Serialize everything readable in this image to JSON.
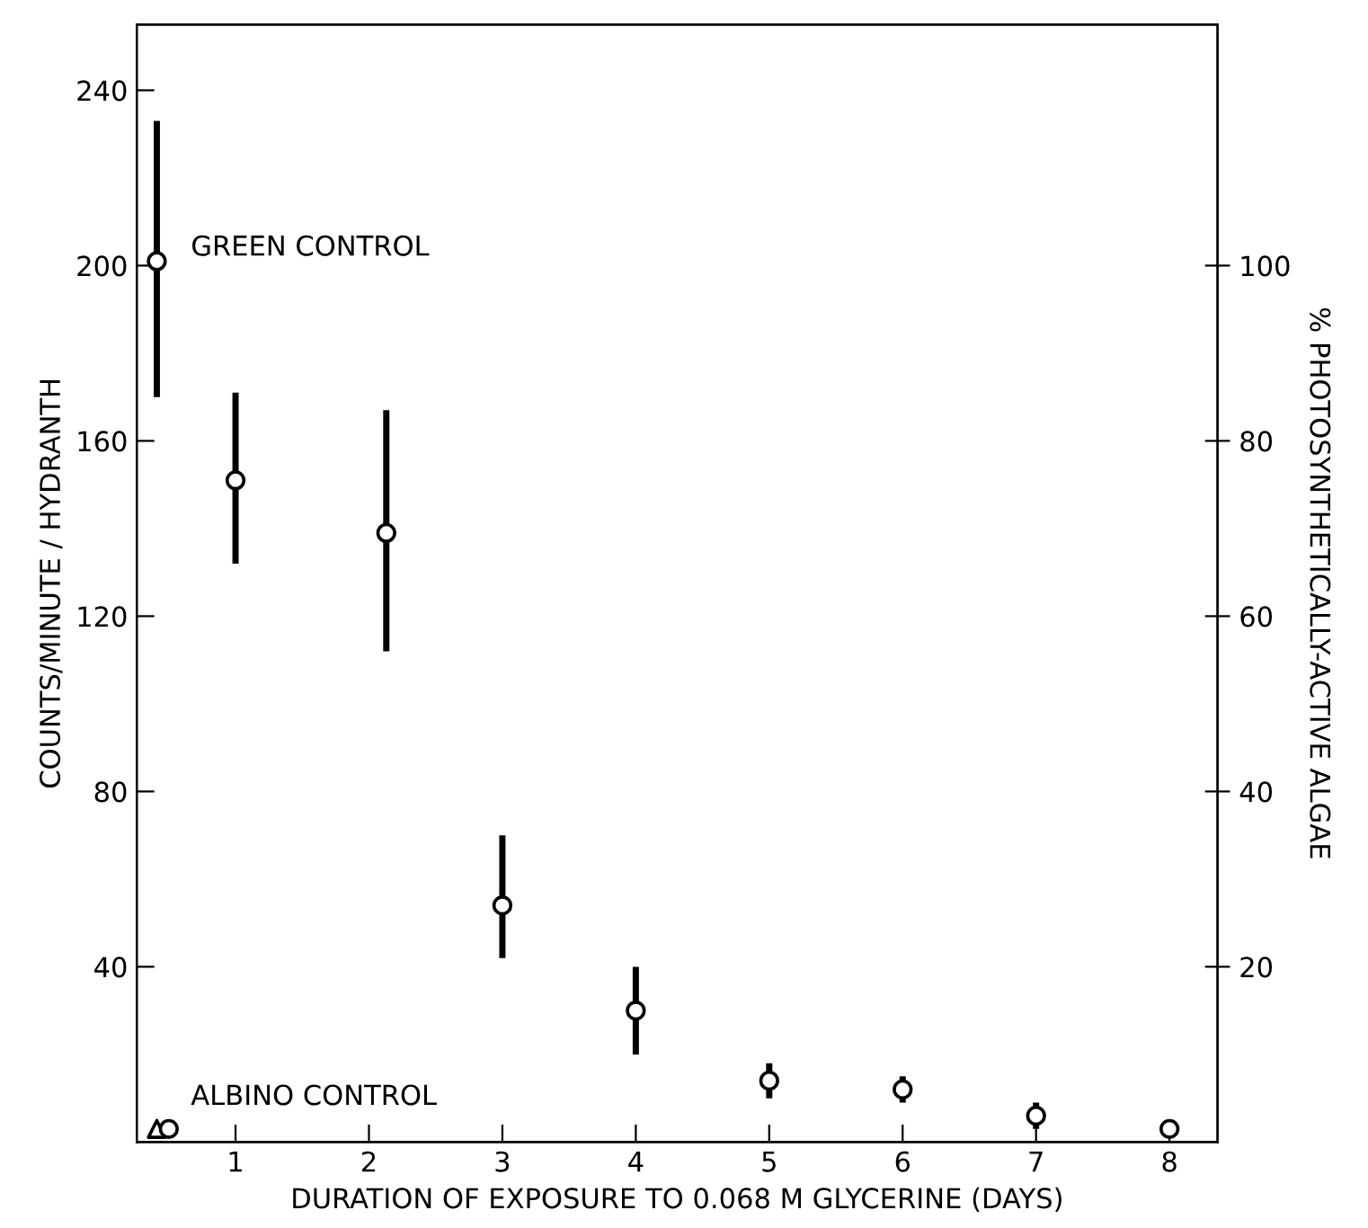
{
  "chart_data": {
    "type": "scatter",
    "xlabel": "DURATION OF EXPOSURE TO 0.068 M GLYCERINE (DAYS)",
    "ylabel": "COUNTS/MINUTE / HYDRANTH",
    "y2label": "% PHOTOSYNTHETICALLY-ACTIVE ALGAE",
    "xlim": [
      0.26,
      8.36
    ],
    "xticks": [
      1,
      2,
      3,
      4,
      5,
      6,
      7,
      8
    ],
    "ylim": [
      0,
      255
    ],
    "yticks": [
      40,
      80,
      120,
      160,
      200,
      240
    ],
    "y2lim": [
      0,
      127.5
    ],
    "y2ticks": [
      20,
      40,
      60,
      80,
      100
    ],
    "grid": false,
    "legend": false,
    "series": [
      {
        "color": "#000000",
        "marker": "circle",
        "x": [
          0.41,
          1.0,
          2.13,
          3.0,
          4.0,
          5.0,
          6.0,
          7.0,
          8.0
        ],
        "values": [
          201,
          151,
          139,
          54,
          30,
          14,
          12,
          6,
          3
        ],
        "errors": [
          [
            170,
            233
          ],
          [
            132,
            171
          ],
          [
            112,
            167
          ],
          [
            42,
            70
          ],
          [
            20,
            40
          ],
          [
            10,
            18
          ],
          [
            9,
            15
          ],
          [
            3,
            9
          ],
          null
        ]
      },
      {
        "color": "#000000",
        "marker": "triangle",
        "x": [
          0.41
        ],
        "values": [
          3
        ]
      },
      {
        "color": "#000000",
        "marker": "circle",
        "x": [
          0.5
        ],
        "values": [
          3
        ]
      }
    ],
    "annotations": [
      "GREEN CONTROL",
      "ALBINO CONTROL"
    ]
  }
}
